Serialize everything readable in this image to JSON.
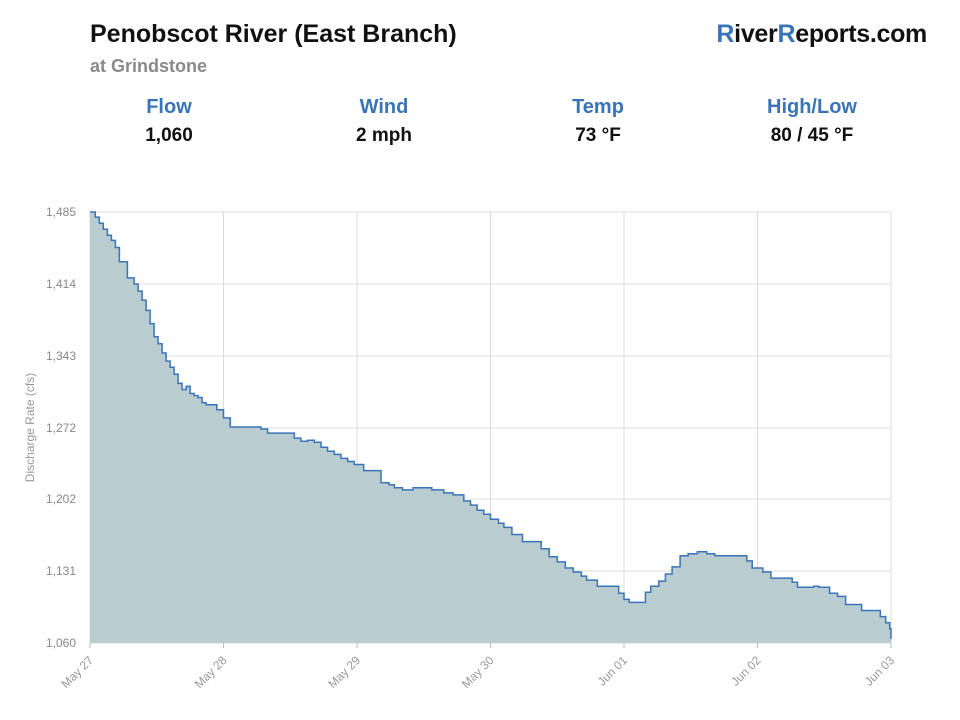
{
  "header": {
    "title": "Penobscot River (East Branch)",
    "subtitle": "at Grindstone",
    "brand_prefix": "R",
    "brand_mid": "iver",
    "brand_r2": "R",
    "brand_suffix": "eports.com",
    "accent_color": "#3a74b8"
  },
  "stats": [
    {
      "label": "Flow",
      "value": "1,060"
    },
    {
      "label": "Wind",
      "value": "2 mph"
    },
    {
      "label": "Temp",
      "value": "73 °F"
    },
    {
      "label": "High/Low",
      "value": "80 / 45 °F"
    }
  ],
  "chart_data": {
    "type": "area",
    "ylabel": "Discharge Rate (cfs)",
    "ylim": [
      1060,
      1485
    ],
    "yticks": [
      "1,060",
      "1,131",
      "1,202",
      "1,272",
      "1,343",
      "1,414",
      "1,485"
    ],
    "ytick_values": [
      1060,
      1131,
      1202,
      1272,
      1343,
      1414,
      1485
    ],
    "xlim_days": [
      0,
      6
    ],
    "xticks": [
      "May 27",
      "May 28",
      "May 29",
      "May 30",
      "Jun 01",
      "Jun 02",
      "Jun 03"
    ],
    "xtick_days": [
      0,
      1,
      2,
      3,
      4,
      5,
      6
    ],
    "line_color": "#3a74b8",
    "fill_color": "#b9ccd0",
    "grid": true,
    "x": [
      0.0,
      0.04,
      0.07,
      0.1,
      0.13,
      0.16,
      0.19,
      0.22,
      0.28,
      0.33,
      0.36,
      0.39,
      0.42,
      0.45,
      0.48,
      0.51,
      0.54,
      0.57,
      0.6,
      0.63,
      0.66,
      0.69,
      0.72,
      0.75,
      0.78,
      0.81,
      0.84,
      0.87,
      0.9,
      0.95,
      1.0,
      1.05,
      1.14,
      1.2,
      1.28,
      1.33,
      1.53,
      1.58,
      1.63,
      1.68,
      1.73,
      1.78,
      1.83,
      1.88,
      1.93,
      1.98,
      2.05,
      2.1,
      2.18,
      2.24,
      2.28,
      2.34,
      2.42,
      2.5,
      2.56,
      2.65,
      2.72,
      2.8,
      2.85,
      2.9,
      2.95,
      3.0,
      3.06,
      3.1,
      3.16,
      3.24,
      3.32,
      3.38,
      3.44,
      3.5,
      3.56,
      3.62,
      3.68,
      3.72,
      3.8,
      3.96,
      4.0,
      4.04,
      4.08,
      4.12,
      4.16,
      4.2,
      4.26,
      4.31,
      4.36,
      4.42,
      4.48,
      4.55,
      4.62,
      4.68,
      4.73,
      4.8,
      4.86,
      4.92,
      4.96,
      5.0,
      5.04,
      5.1,
      5.14,
      5.2,
      5.26,
      5.3,
      5.36,
      5.42,
      5.46,
      5.54,
      5.6,
      5.66,
      5.7,
      5.78,
      5.86,
      5.92,
      5.96,
      5.99
    ],
    "y": [
      1485,
      1480,
      1474,
      1468,
      1462,
      1457,
      1450,
      1436,
      1420,
      1414,
      1407,
      1398,
      1388,
      1375,
      1362,
      1355,
      1346,
      1338,
      1332,
      1325,
      1316,
      1310,
      1313,
      1306,
      1304,
      1302,
      1297,
      1295,
      1295,
      1290,
      1282,
      1273,
      1273,
      1273,
      1271,
      1267,
      1262,
      1259,
      1260,
      1258,
      1253,
      1249,
      1246,
      1242,
      1239,
      1236,
      1230,
      1230,
      1218,
      1216,
      1213,
      1211,
      1213,
      1213,
      1211,
      1208,
      1206,
      1200,
      1196,
      1191,
      1187,
      1182,
      1178,
      1174,
      1167,
      1160,
      1160,
      1153,
      1145,
      1140,
      1134,
      1130,
      1126,
      1122,
      1116,
      1109,
      1103,
      1100,
      1100,
      1100,
      1110,
      1116,
      1121,
      1128,
      1135,
      1146,
      1148,
      1150,
      1148,
      1146,
      1146,
      1146,
      1146,
      1141,
      1134,
      1134,
      1130,
      1124,
      1124,
      1124,
      1120,
      1115,
      1115,
      1116,
      1115,
      1109,
      1106,
      1098,
      1098,
      1092,
      1092,
      1086,
      1080,
      1074
    ]
  }
}
